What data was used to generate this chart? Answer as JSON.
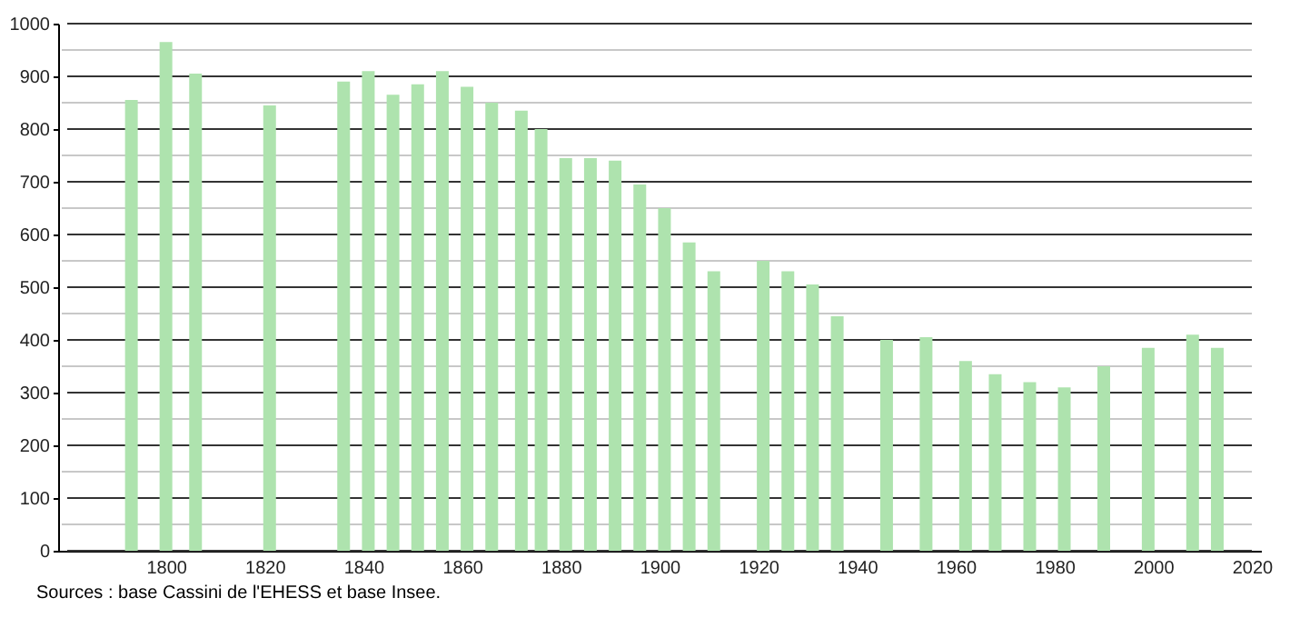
{
  "chart_data": {
    "type": "bar",
    "color": "#aee3ae",
    "x": [
      1793,
      1800,
      1806,
      1821,
      1836,
      1841,
      1846,
      1851,
      1856,
      1861,
      1866,
      1872,
      1876,
      1881,
      1886,
      1891,
      1896,
      1901,
      1906,
      1911,
      1921,
      1926,
      1931,
      1936,
      1946,
      1954,
      1962,
      1968,
      1975,
      1982,
      1990,
      1999,
      2008,
      2013
    ],
    "values": [
      855,
      965,
      905,
      845,
      890,
      910,
      865,
      885,
      910,
      880,
      850,
      835,
      800,
      745,
      745,
      740,
      695,
      650,
      585,
      530,
      550,
      530,
      505,
      445,
      400,
      405,
      360,
      335,
      320,
      310,
      350,
      385,
      410,
      385
    ],
    "xlim": [
      1780,
      2020
    ],
    "xticks": [
      1800,
      1820,
      1840,
      1860,
      1880,
      1900,
      1920,
      1940,
      1960,
      1980,
      2000,
      2020
    ],
    "ylim": [
      0,
      1000
    ],
    "yticks": [
      0,
      {
        "value": 50,
        "label": null
      },
      100,
      {
        "value": 150,
        "label": null
      },
      200,
      {
        "value": 250,
        "label": null
      },
      300,
      {
        "value": 350,
        "label": null
      },
      400,
      {
        "value": 450,
        "label": null
      },
      500,
      {
        "value": 550,
        "label": null
      },
      600,
      {
        "value": 650,
        "label": null
      },
      700,
      {
        "value": 750,
        "label": null
      },
      800,
      {
        "value": 850,
        "label": null
      },
      900,
      {
        "value": 950,
        "label": null
      },
      1000
    ],
    "grid": "y",
    "annotations": [
      "Sources : base Cassini de l'EHESS et base Insee."
    ]
  }
}
